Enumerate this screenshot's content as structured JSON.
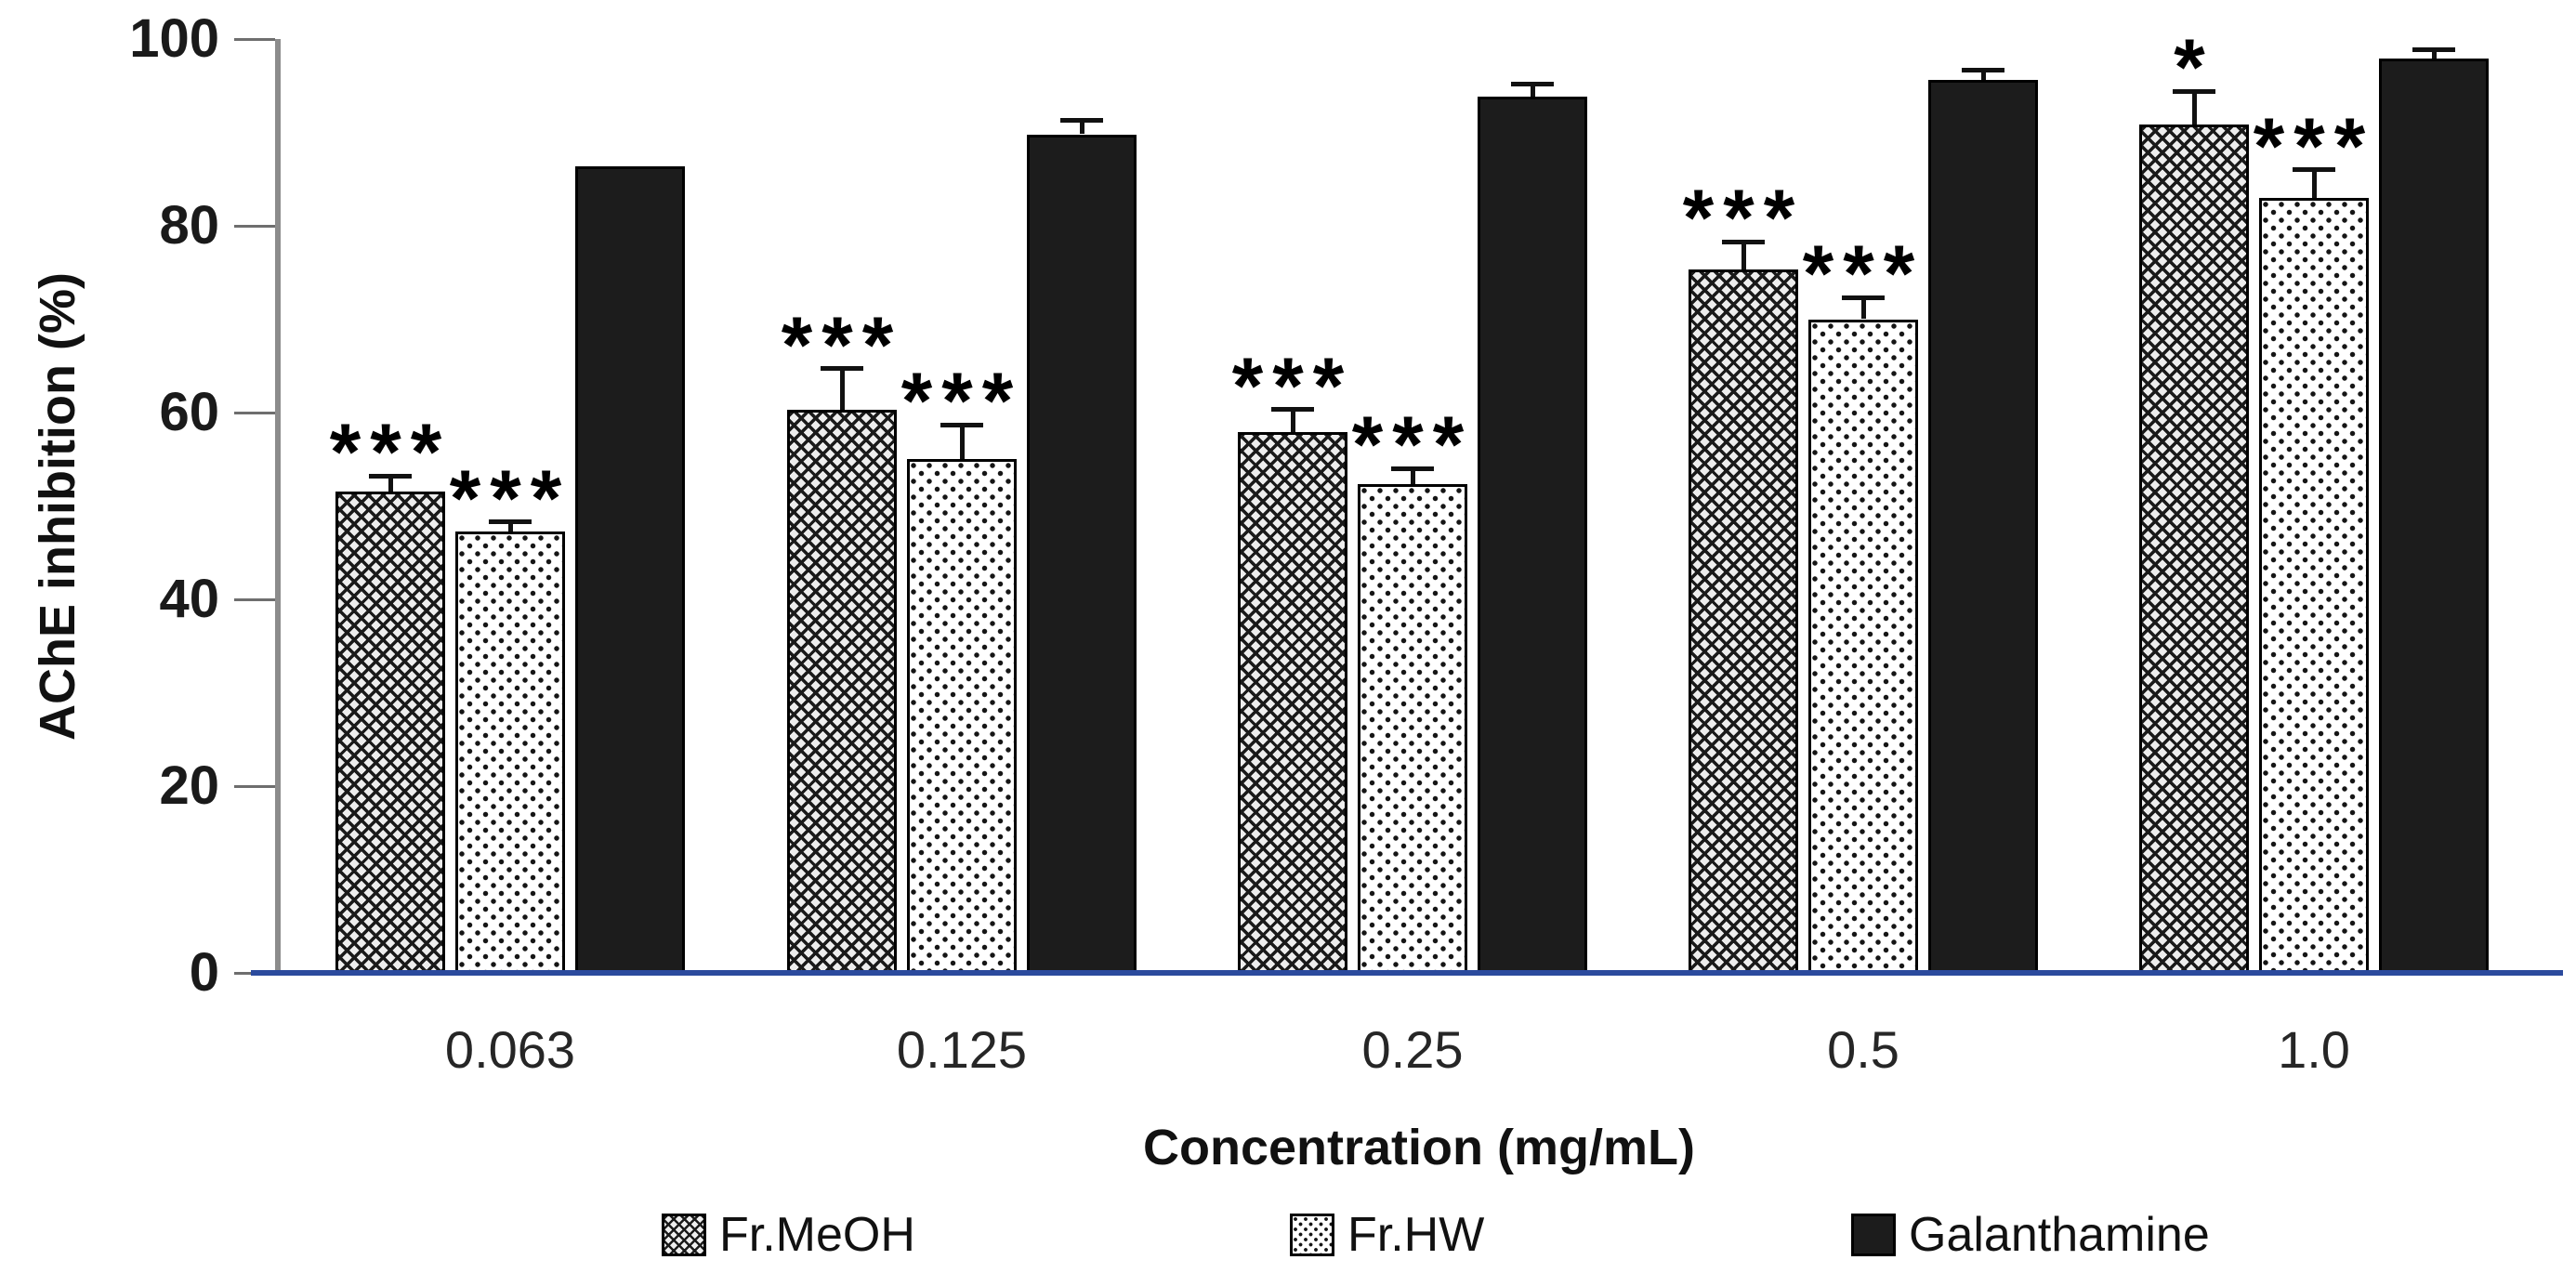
{
  "figure": {
    "xlabel": "Concentration (mg/mL)",
    "ylabel": "AChE inhibition (%)"
  },
  "chart_data": {
    "type": "bar",
    "title": "",
    "xlabel": "Concentration (mg/mL)",
    "ylabel": "AChE inhibition (%)",
    "categories": [
      "0.063",
      "0.125",
      "0.25",
      "0.5",
      "1.0"
    ],
    "series": [
      {
        "name": "Fr.MeOH",
        "pattern": "crosshatch",
        "values": [
          51.5,
          60.3,
          57.9,
          75.3,
          90.8
        ],
        "errors_plus": [
          1.7,
          4.4,
          2.4,
          3.0,
          3.6
        ],
        "significance": [
          "***",
          "***",
          "***",
          "***",
          "*"
        ]
      },
      {
        "name": "Fr.HW",
        "pattern": "dots",
        "values": [
          47.3,
          55.0,
          52.3,
          70.0,
          83.0
        ],
        "errors_plus": [
          1.0,
          3.7,
          1.7,
          2.3,
          3.0
        ],
        "significance": [
          "***",
          "***",
          "***",
          "***",
          "***"
        ]
      },
      {
        "name": "Galanthamine",
        "pattern": "solid",
        "values": [
          86.4,
          89.8,
          93.8,
          95.6,
          97.9
        ],
        "errors_plus": [
          0,
          1.5,
          1.4,
          1.1,
          1.0
        ],
        "significance": [
          "",
          "",
          "",
          "",
          ""
        ]
      }
    ],
    "ylim": [
      0,
      100
    ],
    "yticks": [
      0,
      20,
      40,
      60,
      80,
      100
    ],
    "grid": false,
    "legend_position": "bottom",
    "colors": {
      "baseline_blue": "#2b4a9d",
      "axis_gray": "#8c8c8c",
      "bar_solid": "#1c1c1c",
      "ink": "#000000"
    }
  }
}
